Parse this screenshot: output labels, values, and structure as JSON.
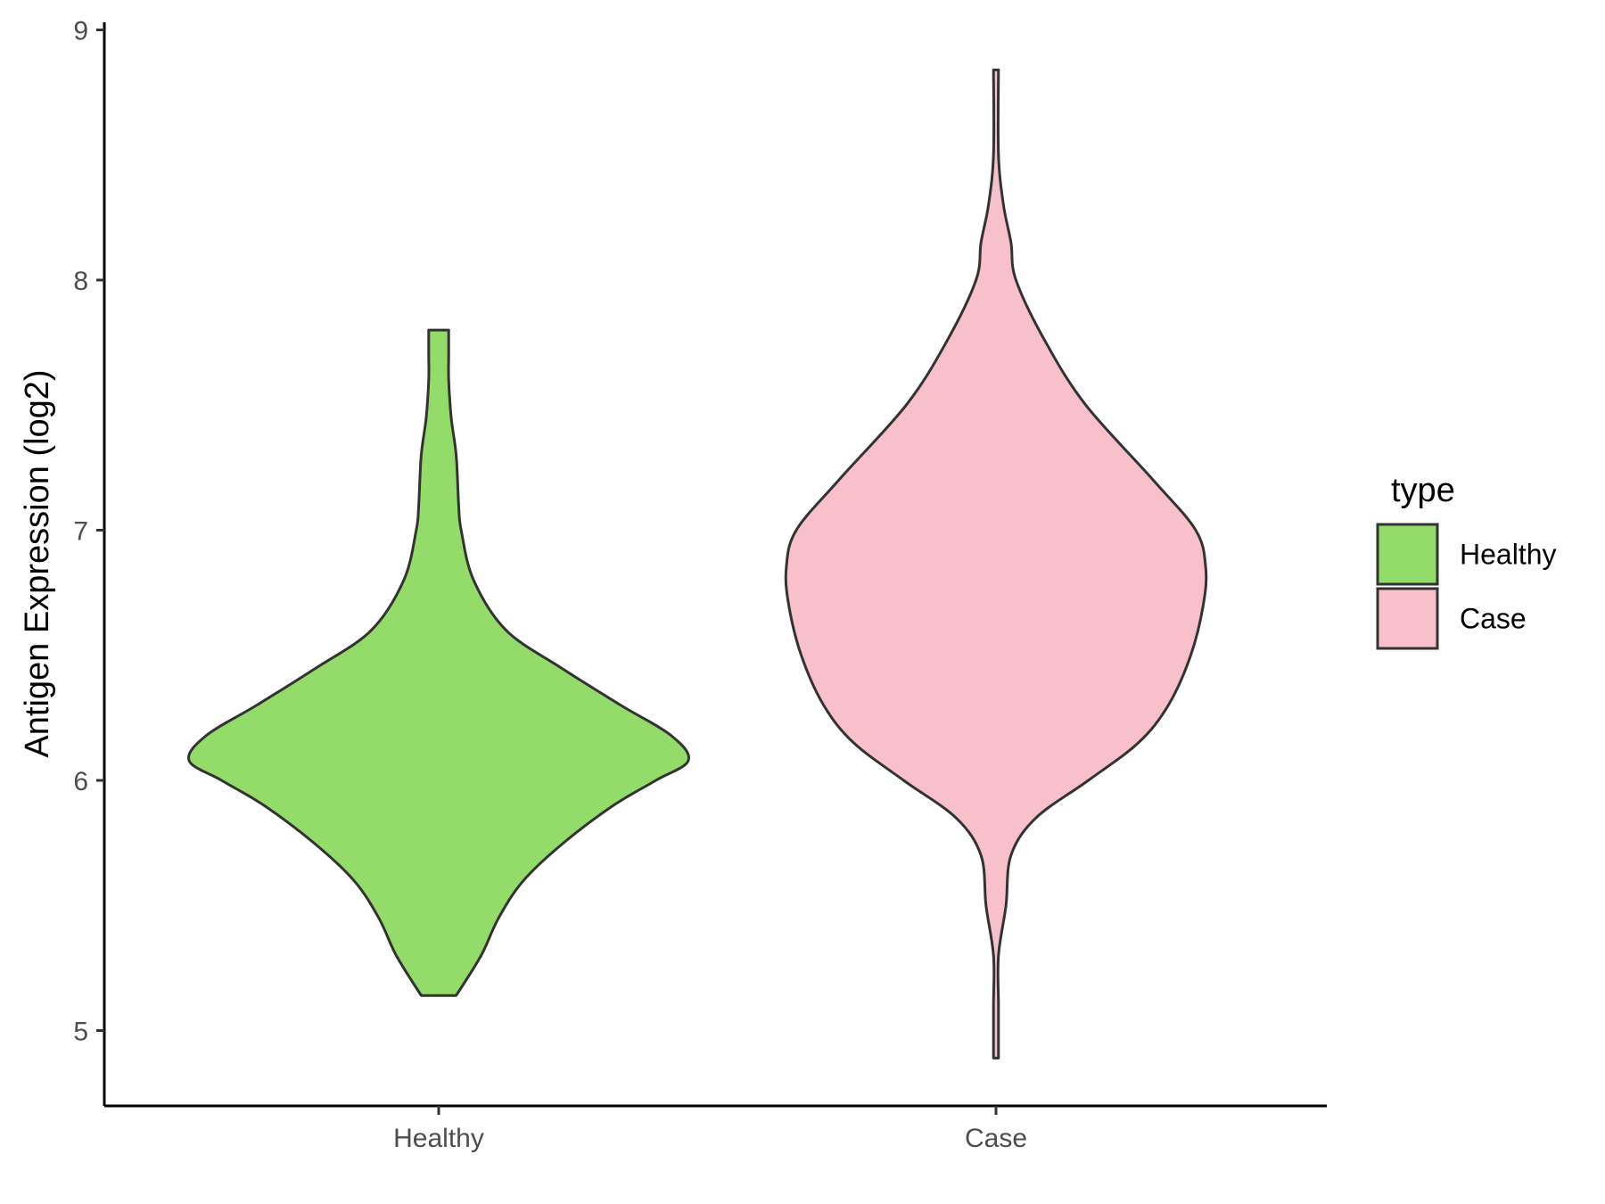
{
  "chart_data": {
    "type": "violin",
    "ylabel": "Antigen Expression (log2)",
    "xlabel": "",
    "ylim": [
      4.7,
      9.05
    ],
    "yticks": [
      5,
      6,
      7,
      8,
      9
    ],
    "categories": [
      "Healthy",
      "Case"
    ],
    "legend": {
      "title": "type",
      "position": "right",
      "entries": [
        "Healthy",
        "Case"
      ]
    },
    "series": [
      {
        "name": "Healthy",
        "color": "#93dc6a",
        "min": 5.14,
        "max": 7.8,
        "profile": [
          [
            5.14,
            0.07
          ],
          [
            5.3,
            0.17
          ],
          [
            5.45,
            0.24
          ],
          [
            5.6,
            0.34
          ],
          [
            5.75,
            0.5
          ],
          [
            5.9,
            0.7
          ],
          [
            6.0,
            0.87
          ],
          [
            6.08,
            1.0
          ],
          [
            6.18,
            0.93
          ],
          [
            6.3,
            0.73
          ],
          [
            6.45,
            0.49
          ],
          [
            6.6,
            0.27
          ],
          [
            6.8,
            0.14
          ],
          [
            7.0,
            0.09
          ],
          [
            7.1,
            0.08
          ],
          [
            7.3,
            0.07
          ],
          [
            7.45,
            0.05
          ],
          [
            7.6,
            0.04
          ],
          [
            7.7,
            0.04
          ],
          [
            7.8,
            0.04
          ]
        ]
      },
      {
        "name": "Case",
        "color": "#f8c0cb",
        "min": 4.89,
        "max": 8.84,
        "profile": [
          [
            4.89,
            0.01
          ],
          [
            5.1,
            0.01
          ],
          [
            5.3,
            0.01
          ],
          [
            5.5,
            0.04
          ],
          [
            5.7,
            0.06
          ],
          [
            5.85,
            0.16
          ],
          [
            6.0,
            0.37
          ],
          [
            6.15,
            0.57
          ],
          [
            6.3,
            0.69
          ],
          [
            6.5,
            0.78
          ],
          [
            6.7,
            0.83
          ],
          [
            6.85,
            0.84
          ],
          [
            7.0,
            0.8
          ],
          [
            7.2,
            0.63
          ],
          [
            7.5,
            0.36
          ],
          [
            7.75,
            0.2
          ],
          [
            8.0,
            0.08
          ],
          [
            8.15,
            0.06
          ],
          [
            8.3,
            0.03
          ],
          [
            8.5,
            0.01
          ],
          [
            8.84,
            0.01
          ]
        ]
      }
    ]
  }
}
